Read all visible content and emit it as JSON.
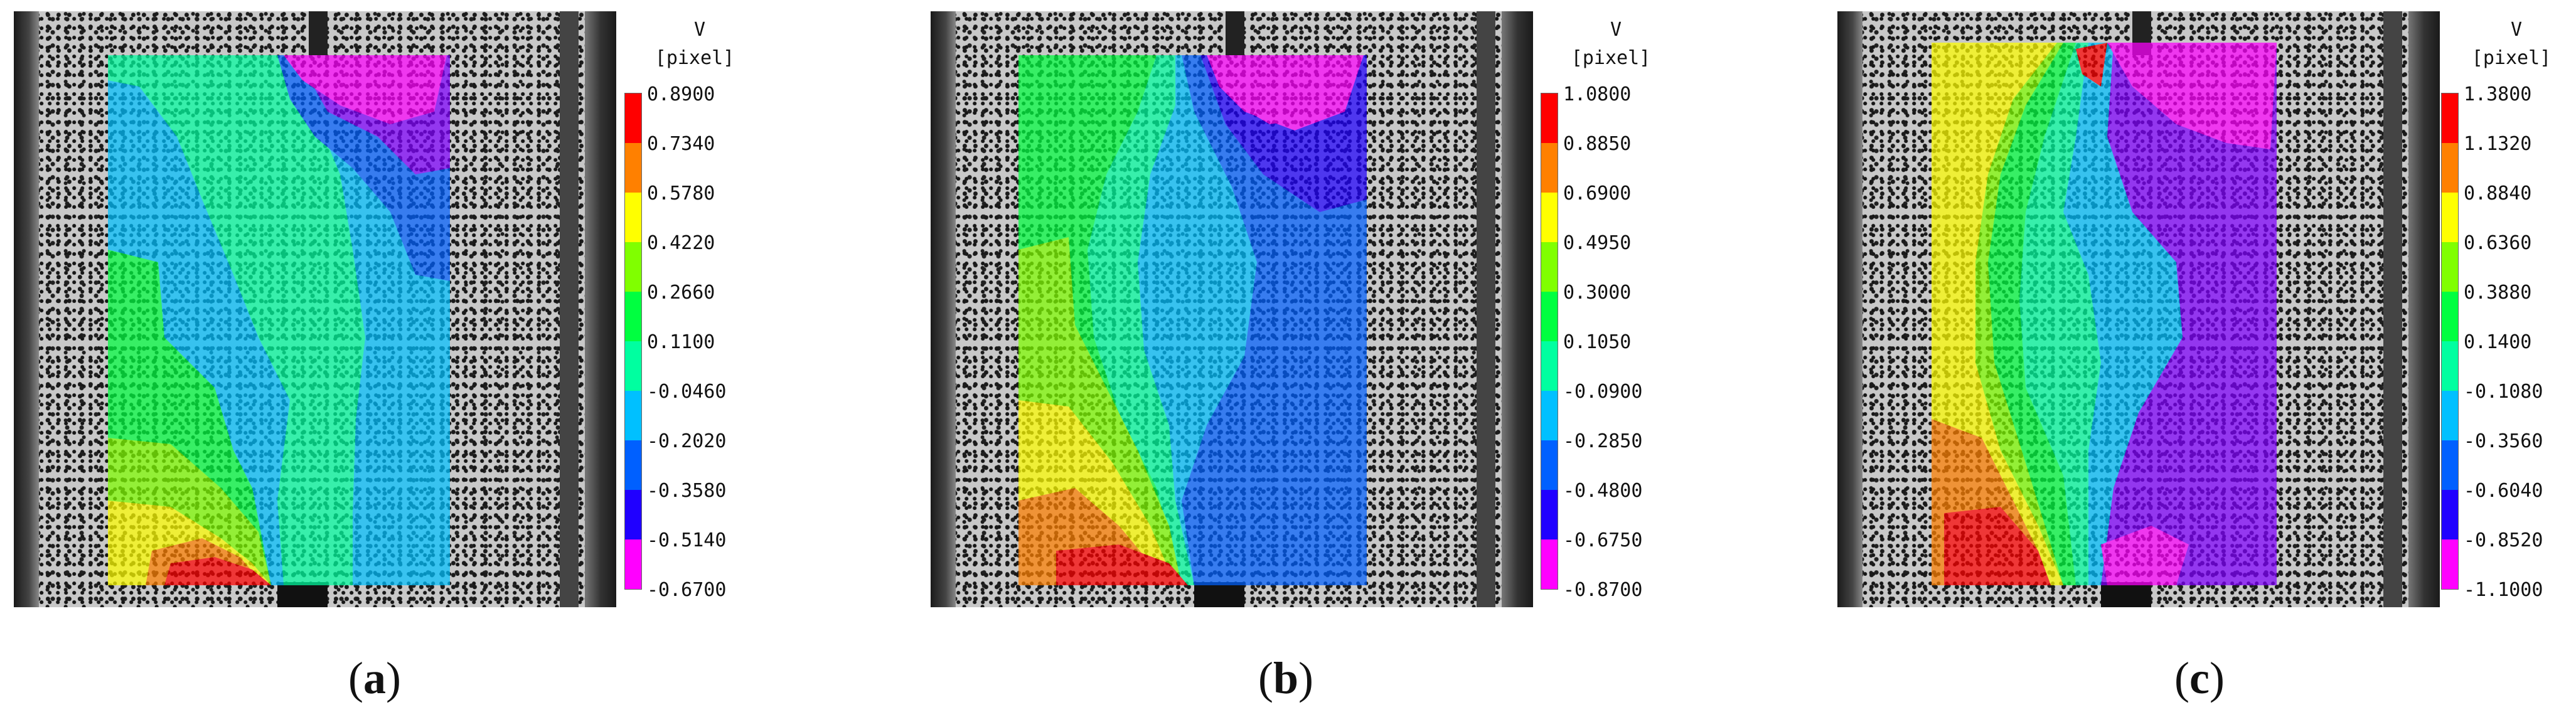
{
  "legend_title": "V",
  "legend_unit": "[pixel]",
  "colors": [
    "#ff0000",
    "#ff8000",
    "#ffff00",
    "#80ff00",
    "#00ff40",
    "#00ffa0",
    "#00c0ff",
    "#0060ff",
    "#2000ff",
    "#8000ff",
    "#ff00ff"
  ],
  "panels": [
    {
      "caption_open": "(",
      "caption_letter": "a",
      "caption_close": ")",
      "ticks": [
        "0.8900",
        "0.7340",
        "0.5780",
        "0.4220",
        "0.2660",
        "0.1100",
        "-0.0460",
        "-0.2020",
        "-0.3580",
        "-0.5140",
        "-0.6700"
      ]
    },
    {
      "caption_open": "(",
      "caption_letter": "b",
      "caption_close": ")",
      "ticks": [
        "1.0800",
        "0.8850",
        "0.6900",
        "0.4950",
        "0.3000",
        "0.1050",
        "-0.0900",
        "-0.2850",
        "-0.4800",
        "-0.6750",
        "-0.8700"
      ]
    },
    {
      "caption_open": "(",
      "caption_letter": "c",
      "caption_close": ")",
      "ticks": [
        "1.3800",
        "1.1320",
        "0.8840",
        "0.6360",
        "0.3880",
        "0.1400",
        "-0.1080",
        "-0.3560",
        "-0.6040",
        "-0.8520",
        "-1.1000"
      ]
    }
  ]
}
